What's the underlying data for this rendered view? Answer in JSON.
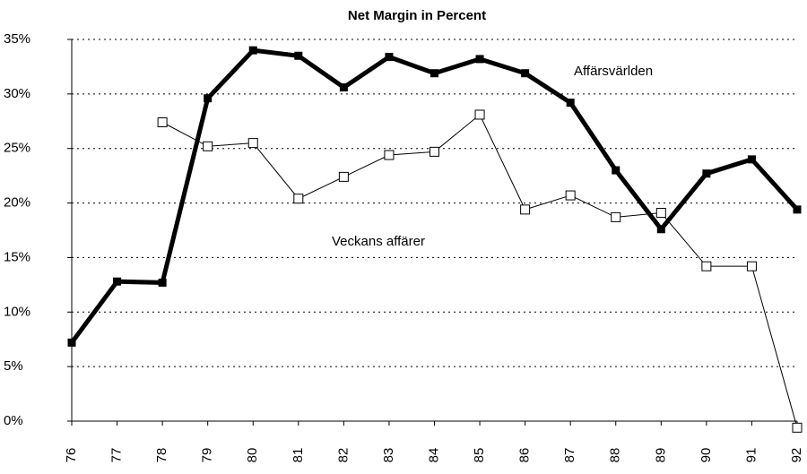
{
  "chart_data": {
    "type": "line",
    "title": "Net Margin in Percent",
    "categories": [
      "76",
      "77",
      "78",
      "79",
      "80",
      "81",
      "82",
      "83",
      "84",
      "85",
      "86",
      "87",
      "88",
      "89",
      "90",
      "91",
      "92"
    ],
    "series": [
      {
        "name": "Affärsvärlden",
        "color": "#000000",
        "values": [
          7.2,
          12.8,
          12.7,
          29.6,
          34.0,
          33.5,
          30.6,
          33.4,
          31.9,
          33.2,
          31.9,
          29.2,
          23.0,
          17.6,
          22.7,
          24.0,
          19.4
        ]
      },
      {
        "name": "Veckans affärer",
        "color": "#000000",
        "values": [
          null,
          null,
          27.4,
          25.2,
          25.5,
          20.4,
          22.4,
          24.4,
          24.7,
          28.1,
          19.4,
          20.7,
          18.7,
          19.1,
          14.2,
          14.2,
          -0.6
        ]
      }
    ],
    "ylim": [
      0,
      35
    ],
    "yticks": [
      {
        "value": 0,
        "label": "0%"
      },
      {
        "value": 5,
        "label": "5%"
      },
      {
        "value": 10,
        "label": "10%"
      },
      {
        "value": 15,
        "label": "15%"
      },
      {
        "value": 20,
        "label": "20%"
      },
      {
        "value": 25,
        "label": "25%"
      },
      {
        "value": 30,
        "label": "30%"
      },
      {
        "value": 35,
        "label": "35%"
      }
    ],
    "grid": true
  }
}
